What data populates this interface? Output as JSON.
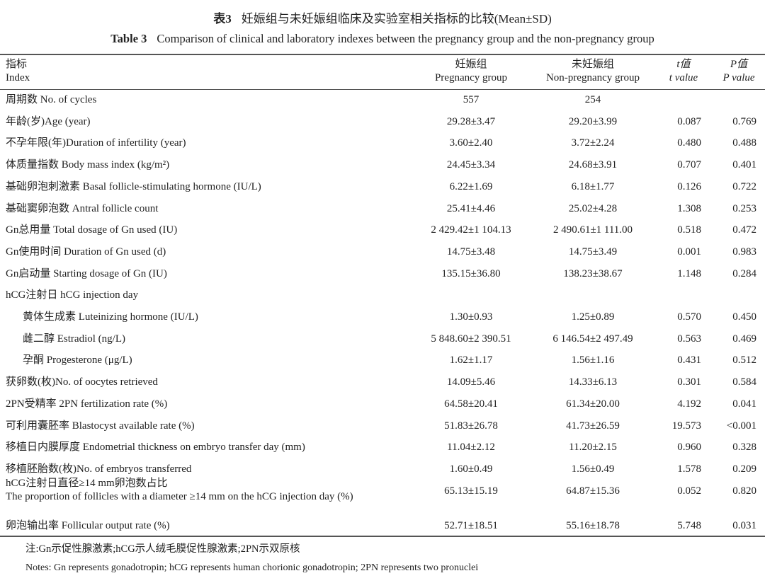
{
  "caption": {
    "cn_label": "表3",
    "cn_title": "妊娠组与未妊娠组临床及实验室相关指标的比较(Mean±SD)",
    "en_label": "Table 3",
    "en_title": "Comparison of clinical and laboratory indexes between the pregnancy group and the non-pregnancy group"
  },
  "headers": {
    "index_cn": "指标",
    "index_en": "Index",
    "preg_cn": "妊娠组",
    "preg_en": "Pregnancy group",
    "nonpreg_cn": "未妊娠组",
    "nonpreg_en": "Non-pregnancy group",
    "t_cn": "t值",
    "t_en": "t value",
    "p_cn": "P值",
    "p_en": "P value"
  },
  "rows": [
    {
      "label": "周期数 No. of cycles",
      "preg": "557",
      "nonpreg": "254",
      "t": "",
      "p": ""
    },
    {
      "label": "年龄(岁)Age (year)",
      "preg": "29.28±3.47",
      "nonpreg": "29.20±3.99",
      "t": "0.087",
      "p": "0.769"
    },
    {
      "label": "不孕年限(年)Duration of infertility (year)",
      "preg": "3.60±2.40",
      "nonpreg": "3.72±2.24",
      "t": "0.480",
      "p": "0.488"
    },
    {
      "label": "体质量指数 Body mass index (kg/m²)",
      "preg": "24.45±3.34",
      "nonpreg": "24.68±3.91",
      "t": "0.707",
      "p": "0.401"
    },
    {
      "label": "基础卵泡刺激素 Basal follicle-stimulating hormone (IU/L)",
      "preg": "6.22±1.69",
      "nonpreg": "6.18±1.77",
      "t": "0.126",
      "p": "0.722"
    },
    {
      "label": "基础窦卵泡数 Antral follicle count",
      "preg": "25.41±4.46",
      "nonpreg": "25.02±4.28",
      "t": "1.308",
      "p": "0.253"
    },
    {
      "label": "Gn总用量 Total dosage of Gn used (IU)",
      "preg": "2 429.42±1 104.13",
      "nonpreg": "2 490.61±1 111.00",
      "t": "0.518",
      "p": "0.472"
    },
    {
      "label": "Gn使用时间 Duration of Gn used (d)",
      "preg": "14.75±3.48",
      "nonpreg": "14.75±3.49",
      "t": "0.001",
      "p": "0.983"
    },
    {
      "label": "Gn启动量 Starting dosage of Gn (IU)",
      "preg": "135.15±36.80",
      "nonpreg": "138.23±38.67",
      "t": "1.148",
      "p": "0.284"
    },
    {
      "label": "hCG注射日 hCG injection day",
      "preg": "",
      "nonpreg": "",
      "t": "",
      "p": ""
    },
    {
      "label": "黄体生成素 Luteinizing hormone (IU/L)",
      "preg": "1.30±0.93",
      "nonpreg": "1.25±0.89",
      "t": "0.570",
      "p": "0.450",
      "sub": true
    },
    {
      "label": "雌二醇 Estradiol (ng/L)",
      "preg": "5 848.60±2 390.51",
      "nonpreg": "6 146.54±2 497.49",
      "t": "0.563",
      "p": "0.469",
      "sub": true
    },
    {
      "label": "孕酮 Progesterone (μg/L)",
      "preg": "1.62±1.17",
      "nonpreg": "1.56±1.16",
      "t": "0.431",
      "p": "0.512",
      "sub": true
    },
    {
      "label": "获卵数(枚)No. of oocytes retrieved",
      "preg": "14.09±5.46",
      "nonpreg": "14.33±6.13",
      "t": "0.301",
      "p": "0.584"
    },
    {
      "label": "2PN受精率 2PN fertilization rate (%)",
      "preg": "64.58±20.41",
      "nonpreg": "61.34±20.00",
      "t": "4.192",
      "p": "0.041"
    },
    {
      "label": "可利用囊胚率 Blastocyst available rate (%)",
      "preg": "51.83±26.78",
      "nonpreg": "41.73±26.59",
      "t": "19.573",
      "p": "<0.001"
    },
    {
      "label": "移植日内膜厚度 Endometrial thickness on embryo transfer day (mm)",
      "preg": "11.04±2.12",
      "nonpreg": "11.20±2.15",
      "t": "0.960",
      "p": "0.328"
    },
    {
      "label": "移植胚胎数(枚)No. of embryos transferred",
      "preg": "1.60±0.49",
      "nonpreg": "1.56±0.49",
      "t": "1.578",
      "p": "0.209"
    },
    {
      "label": "hCG注射日直径≥14 mm卵泡数占比",
      "label2": "The proportion of follicles with a diameter ≥14 mm on the hCG injection day (%)",
      "preg": "65.13±15.19",
      "nonpreg": "64.87±15.36",
      "t": "0.052",
      "p": "0.820"
    },
    {
      "label": "卵泡输出率 Follicular output rate (%)",
      "preg": "52.71±18.51",
      "nonpreg": "55.16±18.78",
      "t": "5.748",
      "p": "0.031"
    }
  ],
  "notes": {
    "cn": "注:Gn示促性腺激素;hCG示人绒毛膜促性腺激素;2PN示双原核",
    "en": "Notes: Gn represents gonadotropin; hCG represents human chorionic gonadotropin; 2PN represents two pronuclei"
  }
}
